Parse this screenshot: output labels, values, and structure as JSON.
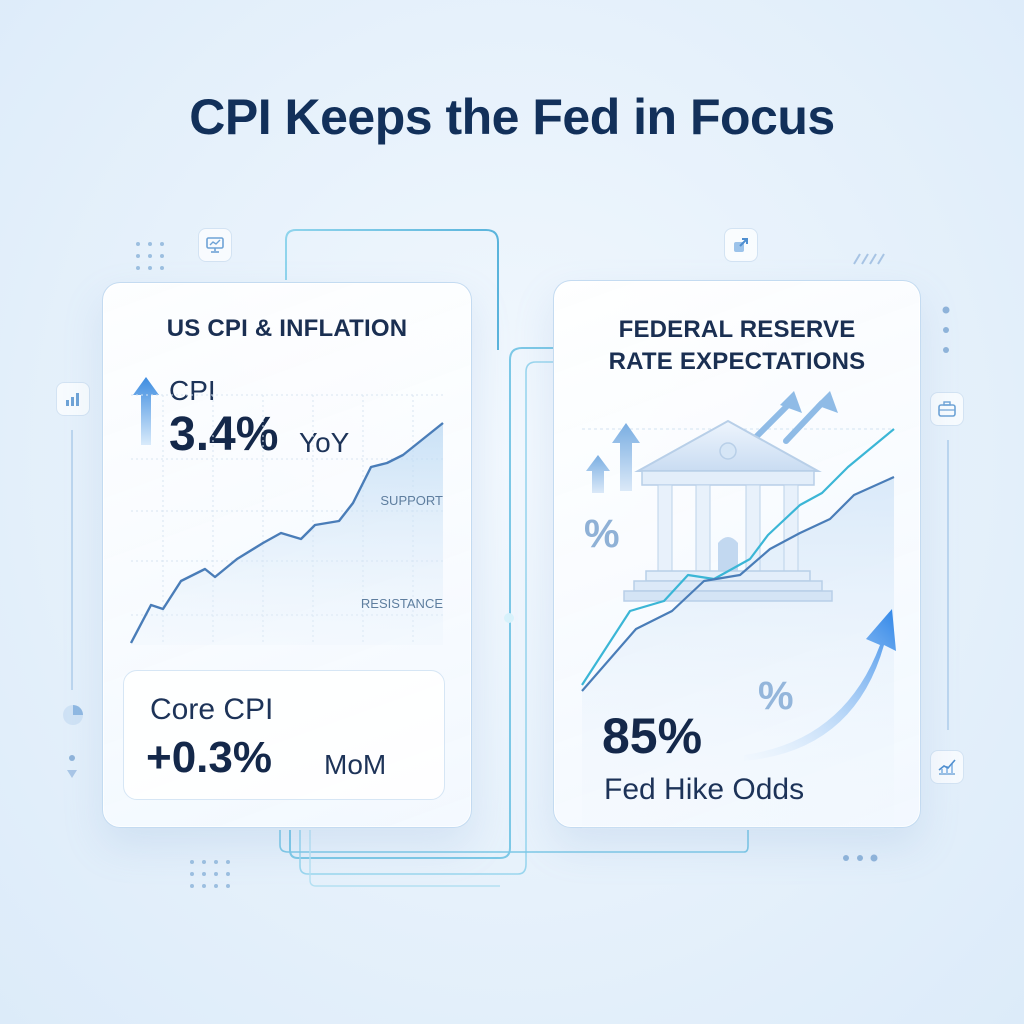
{
  "title": "CPI Keeps the Fed in Focus",
  "cpi_card": {
    "heading": "US CPI & INFLATION",
    "cpi_label": "CPI",
    "cpi_value": "3.4%",
    "cpi_unit": "YoY",
    "support_label": "SUPPORT",
    "resistance_label": "RESISTANCE",
    "core_label": "Core CPI",
    "core_value": "+0.3%",
    "core_unit": "MoM"
  },
  "fed_card": {
    "heading_line1": "FEDERAL RESERVE",
    "heading_line2": "RATE EXPECTATIONS",
    "pct_symbol_left": "%",
    "pct_symbol_right": "%",
    "odds_value": "85%",
    "odds_label": "Fed Hike Odds"
  },
  "colors": {
    "title": "#12305a",
    "accent_blue": "#2f86e8",
    "chart_line": "#4a7db8",
    "chart_line_teal": "#3bb6d6"
  },
  "icons": [
    "monitor-icon",
    "expand-icon",
    "bar-chart-icon",
    "briefcase-icon",
    "pie-chart-icon",
    "line-chart-icon",
    "bank-icon",
    "up-arrow-icon"
  ]
}
